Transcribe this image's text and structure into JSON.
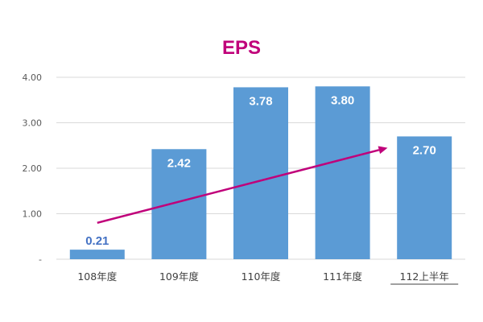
{
  "chart_data": {
    "type": "bar",
    "title": "EPS",
    "categories": [
      "108年度",
      "109年度",
      "110年度",
      "111年度",
      "112上半年"
    ],
    "values": [
      0.21,
      2.42,
      3.78,
      3.8,
      2.7
    ],
    "value_labels": [
      "0.21",
      "2.42",
      "3.78",
      "3.80",
      "2.70"
    ],
    "y_ticks": [
      "-",
      "1.00",
      "2.00",
      "3.00",
      "4.00"
    ],
    "y_tick_values": [
      0,
      1,
      2,
      3,
      4
    ],
    "ylim": [
      0,
      4
    ],
    "xlabel": "",
    "ylabel": "",
    "grid": true,
    "legend": "none",
    "trend_arrow": {
      "from": [
        0,
        0.8
      ],
      "to": [
        3.55,
        2.45
      ]
    }
  },
  "colors": {
    "title": "#c0007a",
    "bar": "#5b9bd5",
    "grid": "#d9d9d9",
    "trend_arrow": "#c0007a",
    "label_inside": "#ffffff",
    "label_outside": "#4472c4"
  }
}
